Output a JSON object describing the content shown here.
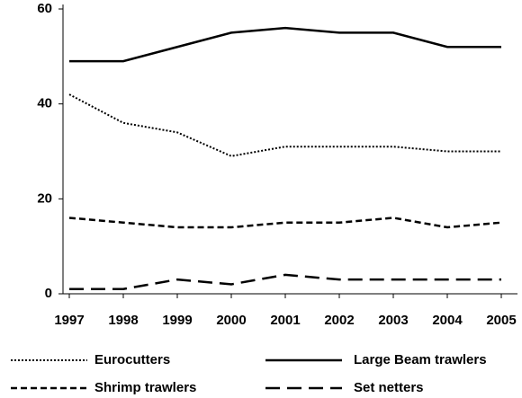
{
  "chart_data": {
    "type": "line",
    "categories": [
      "1997",
      "1998",
      "1999",
      "2000",
      "2001",
      "2002",
      "2003",
      "2004",
      "2005"
    ],
    "series": [
      {
        "name": "Eurocutters",
        "color": "#000000",
        "dash": "dotted",
        "values": [
          42,
          36,
          34,
          29,
          31,
          31,
          31,
          30,
          30
        ]
      },
      {
        "name": "Large Beam trawlers",
        "color": "#000000",
        "dash": "solid",
        "values": [
          49,
          49,
          52,
          55,
          56,
          55,
          55,
          52,
          52
        ]
      },
      {
        "name": "Shrimp trawlers",
        "color": "#000000",
        "dash": "dashed",
        "values": [
          16,
          15,
          14,
          14,
          15,
          15,
          16,
          14,
          15
        ]
      },
      {
        "name": "Set netters",
        "color": "#000000",
        "dash": "longdash",
        "values": [
          1,
          1,
          3,
          2,
          4,
          3,
          3,
          3,
          3
        ]
      }
    ],
    "ylim": [
      0,
      60
    ],
    "yticks": [
      0,
      20,
      40,
      60
    ],
    "grid": false,
    "legend": "bottom"
  }
}
